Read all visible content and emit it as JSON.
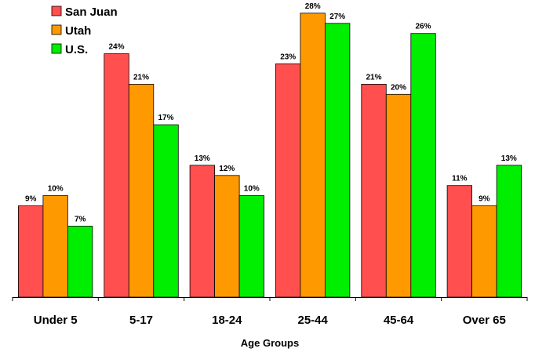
{
  "chart_data": {
    "type": "bar",
    "title": "",
    "xlabel": "Age Groups",
    "ylabel": "",
    "ylim": [
      0,
      29.3
    ],
    "grid": false,
    "legend_position": "top-left",
    "categories": [
      "Under 5",
      "5-17",
      "18-24",
      "25-44",
      "45-64",
      "Over 65"
    ],
    "series": [
      {
        "name": "San Juan",
        "color": "#FF4F4F",
        "values": [
          9,
          24,
          13,
          23,
          21,
          11
        ],
        "labels": [
          "9%",
          "24%",
          "13%",
          "23%",
          "21%",
          "11%"
        ]
      },
      {
        "name": "Utah",
        "color": "#FF9900",
        "values": [
          10,
          21,
          12,
          28,
          20,
          9
        ],
        "labels": [
          "10%",
          "21%",
          "12%",
          "28%",
          "20%",
          "9%"
        ]
      },
      {
        "name": "U.S.",
        "color": "#00EE00",
        "values": [
          7,
          17,
          10,
          27,
          26,
          13
        ],
        "labels": [
          "7%",
          "17%",
          "10%",
          "27%",
          "26%",
          "13%"
        ]
      }
    ]
  }
}
